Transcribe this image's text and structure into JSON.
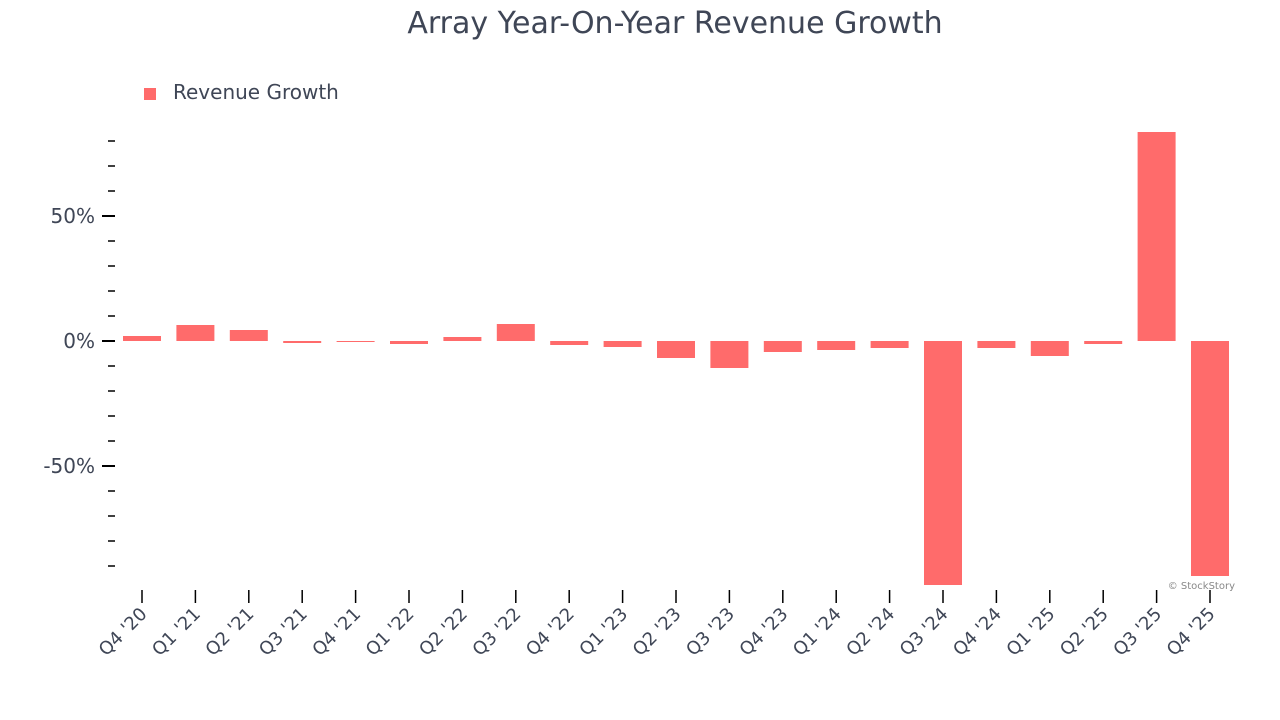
{
  "chart_data": {
    "type": "bar",
    "title": "Array Year-On-Year Revenue Growth",
    "xlabel": "",
    "ylabel": "",
    "categories": [
      "Q4 '20",
      "Q1 '21",
      "Q2 '21",
      "Q3 '21",
      "Q4 '21",
      "Q1 '22",
      "Q2 '22",
      "Q3 '22",
      "Q4 '22",
      "Q1 '23",
      "Q2 '23",
      "Q3 '23",
      "Q4 '23",
      "Q1 '24",
      "Q2 '24",
      "Q3 '24",
      "Q4 '24",
      "Q1 '25",
      "Q2 '25",
      "Q3 '25",
      "Q4 '25"
    ],
    "series": [
      {
        "name": "Revenue Growth",
        "color": "#ff6b6b",
        "values": [
          2.0,
          6.4,
          4.4,
          -0.8,
          -0.4,
          -1.2,
          1.6,
          6.8,
          -1.6,
          -2.4,
          -6.8,
          -10.8,
          -4.4,
          -3.6,
          -2.8,
          -97.6,
          -2.8,
          -6.0,
          -1.2,
          83.6,
          -94.0
        ]
      }
    ],
    "ylim": [
      -100,
      85
    ],
    "yticks": [
      {
        "value": 50,
        "label": "50%"
      },
      {
        "value": 0,
        "label": "0%"
      },
      {
        "value": -50,
        "label": "-50%"
      }
    ],
    "minor_tick_step": 10,
    "grid": false,
    "legend": "top-left",
    "watermark": "© StockStory"
  }
}
